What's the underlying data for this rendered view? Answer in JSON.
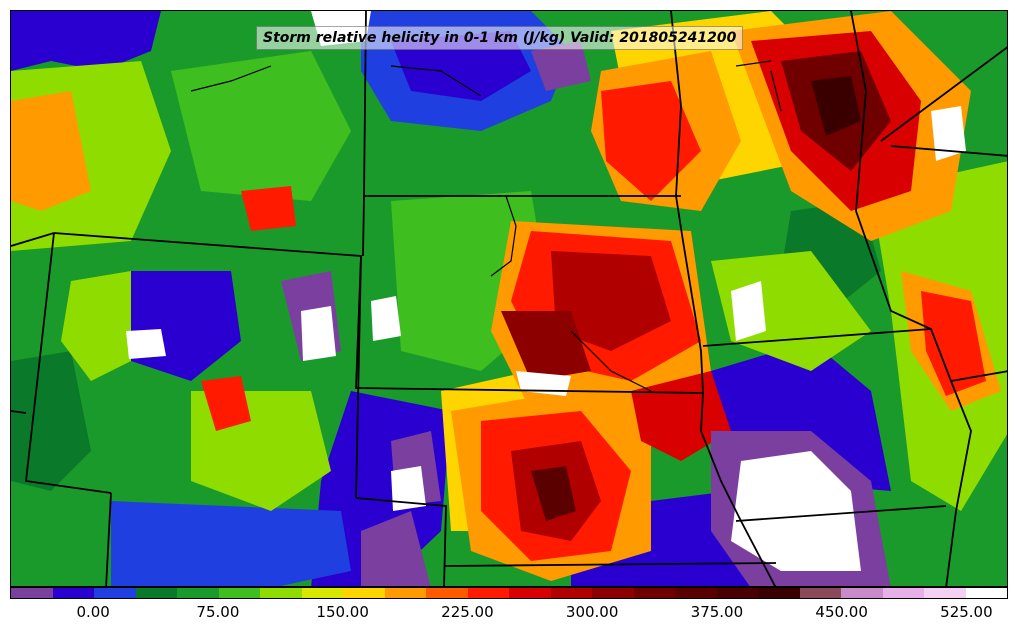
{
  "title": "Storm relative helicity in 0-1 km (J/kg) Valid: 201805241200",
  "colorbar": {
    "colors": [
      "#7b3fa0",
      "#2a00d0",
      "#1f3fe0",
      "#0a7a2a",
      "#1a9a2a",
      "#3fbf1f",
      "#8fdc00",
      "#d8e800",
      "#ffd500",
      "#ff9a00",
      "#ff5a00",
      "#ff1a00",
      "#d80000",
      "#b00000",
      "#8c0000",
      "#700000",
      "#5a0000",
      "#480000",
      "#3a0000",
      "#8a4a5a",
      "#c88ac8",
      "#e8b0e8",
      "#f4d0f4",
      "#ffffff"
    ],
    "tick_labels": [
      "0.00",
      "75.00",
      "150.00",
      "225.00",
      "300.00",
      "375.00",
      "450.00",
      "525.00"
    ]
  },
  "map_colors": {
    "background": "#1a9a2a",
    "purple": "#7b3fa0",
    "blue": "#2a00d0",
    "dark_green": "#0a7a2a",
    "green": "#3fbf1f",
    "lime": "#8fdc00",
    "yellow": "#ffd500",
    "orange": "#ff9a00",
    "red": "#ff1a00",
    "dark_red": "#b00000",
    "maroon": "#5a0000",
    "white": "#ffffff",
    "boundary": "#000000"
  }
}
